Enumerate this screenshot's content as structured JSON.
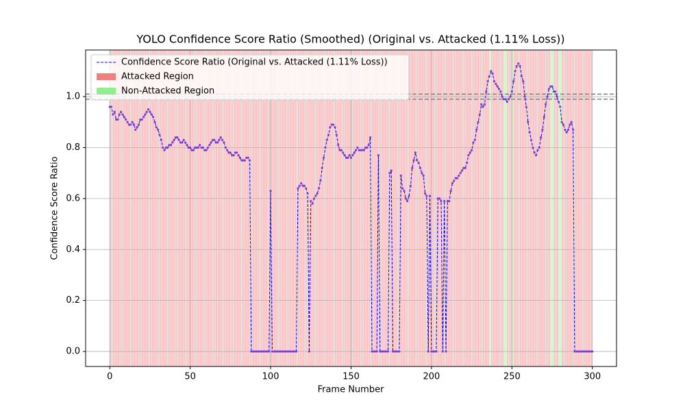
{
  "chart_data": {
    "type": "line",
    "title": "YOLO Confidence Score Ratio (Smoothed) (Original vs. Attacked (1.11% Loss))",
    "x_label": "Frame Number",
    "y_label": "Confidence Score Ratio",
    "x": [
      0,
      1,
      2,
      3,
      4,
      5,
      6,
      7,
      8,
      9,
      10,
      11,
      12,
      13,
      14,
      15,
      16,
      17,
      18,
      19,
      20,
      21,
      22,
      23,
      24,
      25,
      26,
      27,
      28,
      29,
      30,
      31,
      32,
      33,
      34,
      35,
      36,
      37,
      38,
      39,
      40,
      41,
      42,
      43,
      44,
      45,
      46,
      47,
      48,
      49,
      50,
      51,
      52,
      53,
      54,
      55,
      56,
      57,
      58,
      59,
      60,
      61,
      62,
      63,
      64,
      65,
      66,
      67,
      68,
      69,
      70,
      71,
      72,
      73,
      74,
      75,
      76,
      77,
      78,
      79,
      80,
      81,
      82,
      83,
      84,
      85,
      86,
      87,
      88,
      89,
      90,
      91,
      92,
      93,
      94,
      95,
      96,
      97,
      98,
      99,
      100,
      101,
      102,
      103,
      104,
      105,
      106,
      107,
      108,
      109,
      110,
      111,
      112,
      113,
      114,
      115,
      116,
      117,
      118,
      119,
      120,
      121,
      122,
      123,
      124,
      125,
      126,
      127,
      128,
      129,
      130,
      131,
      132,
      133,
      134,
      135,
      136,
      137,
      138,
      139,
      140,
      141,
      142,
      143,
      144,
      145,
      146,
      147,
      148,
      149,
      150,
      151,
      152,
      153,
      154,
      155,
      156,
      157,
      158,
      159,
      160,
      161,
      162,
      163,
      164,
      165,
      166,
      167,
      168,
      169,
      170,
      171,
      172,
      173,
      174,
      175,
      176,
      177,
      178,
      179,
      180,
      181,
      182,
      183,
      184,
      185,
      186,
      187,
      188,
      189,
      190,
      191,
      192,
      193,
      194,
      195,
      196,
      197,
      198,
      199,
      200,
      201,
      202,
      203,
      204,
      205,
      206,
      207,
      208,
      209,
      210,
      211,
      212,
      213,
      214,
      215,
      216,
      217,
      218,
      219,
      220,
      221,
      222,
      223,
      224,
      225,
      226,
      227,
      228,
      229,
      230,
      231,
      232,
      233,
      234,
      235,
      236,
      237,
      238,
      239,
      240,
      241,
      242,
      243,
      244,
      245,
      246,
      247,
      248,
      249,
      250,
      251,
      252,
      253,
      254,
      255,
      256,
      257,
      258,
      259,
      260,
      261,
      262,
      263,
      264,
      265,
      266,
      267,
      268,
      269,
      270,
      271,
      272,
      273,
      274,
      275,
      276,
      277,
      278,
      279,
      280,
      281,
      282,
      283,
      284,
      285,
      286,
      287,
      288,
      289,
      290,
      291,
      292,
      293,
      294,
      295,
      296,
      297,
      298,
      299,
      300
    ],
    "series": [
      {
        "name": "Confidence Score Ratio (Original vs. Attacked (1.11% Loss))",
        "color": "#0000ff",
        "marker_color": "#7b3fd6",
        "values": [
          0.96,
          0.96,
          0.93,
          0.94,
          0.91,
          0.91,
          0.93,
          0.94,
          0.93,
          0.92,
          0.91,
          0.9,
          0.89,
          0.89,
          0.9,
          0.89,
          0.87,
          0.88,
          0.89,
          0.91,
          0.91,
          0.92,
          0.93,
          0.94,
          0.95,
          0.94,
          0.93,
          0.92,
          0.9,
          0.88,
          0.87,
          0.85,
          0.83,
          0.8,
          0.79,
          0.8,
          0.8,
          0.81,
          0.81,
          0.82,
          0.83,
          0.84,
          0.84,
          0.83,
          0.82,
          0.82,
          0.83,
          0.82,
          0.81,
          0.8,
          0.8,
          0.79,
          0.79,
          0.8,
          0.8,
          0.8,
          0.81,
          0.8,
          0.8,
          0.79,
          0.79,
          0.8,
          0.81,
          0.82,
          0.83,
          0.83,
          0.82,
          0.82,
          0.83,
          0.84,
          0.83,
          0.82,
          0.8,
          0.79,
          0.78,
          0.78,
          0.77,
          0.77,
          0.78,
          0.78,
          0.77,
          0.76,
          0.75,
          0.75,
          0.75,
          0.76,
          0.76,
          0.75,
          0,
          0,
          0,
          0,
          0,
          0,
          0,
          0,
          0,
          0,
          0,
          0,
          0.63,
          0,
          0,
          0,
          0,
          0,
          0,
          0,
          0,
          0,
          0,
          0,
          0,
          0,
          0,
          0,
          0,
          0.64,
          0.65,
          0.66,
          0.65,
          0.65,
          0.64,
          0.62,
          0,
          0.59,
          0.58,
          0.6,
          0.61,
          0.62,
          0.64,
          0.67,
          0.72,
          0.76,
          0.8,
          0.83,
          0.85,
          0.88,
          0.89,
          0.89,
          0.88,
          0.85,
          0.81,
          0.79,
          0.79,
          0.78,
          0.77,
          0.76,
          0.76,
          0.77,
          0.76,
          0.77,
          0.78,
          0.79,
          0.8,
          0.79,
          0.79,
          0.79,
          0.79,
          0.8,
          0.8,
          0.81,
          0.84,
          0,
          0,
          0,
          0,
          0.77,
          0,
          0,
          0,
          0,
          0,
          0,
          0.7,
          0.71,
          0,
          0,
          0,
          0,
          0,
          0.69,
          0.64,
          0.63,
          0.6,
          0.59,
          0.61,
          0.65,
          0.72,
          0.75,
          0.78,
          0.75,
          0.74,
          0.72,
          0.7,
          0.69,
          0.62,
          0.61,
          0,
          0.61,
          0,
          0,
          0,
          0,
          0.6,
          0.6,
          0.59,
          0,
          0.59,
          0,
          0.59,
          0.59,
          0.63,
          0.66,
          0.67,
          0.68,
          0.68,
          0.69,
          0.7,
          0.71,
          0.72,
          0.72,
          0.74,
          0.77,
          0.78,
          0.79,
          0.82,
          0.83,
          0.87,
          0.9,
          0.93,
          0.97,
          0.96,
          0.97,
          1.02,
          1.06,
          1.08,
          1.1,
          1.09,
          1.06,
          1.05,
          1.04,
          1.03,
          1.02,
          1.0,
          0.99,
          0.99,
          0.98,
          0.99,
          1.0,
          1.02,
          1.06,
          1.1,
          1.12,
          1.13,
          1.12,
          1.08,
          1.06,
          1.0,
          0.96,
          0.9,
          0.86,
          0.83,
          0.8,
          0.78,
          0.77,
          0.79,
          0.8,
          0.84,
          0.87,
          0.92,
          0.97,
          1.0,
          1.03,
          1.04,
          1.04,
          1.02,
          1.02,
          1.0,
          0.98,
          0.96,
          0.9,
          0.89,
          0.87,
          0.86,
          0.87,
          0.89,
          0.9,
          0.87,
          0,
          0,
          0,
          0,
          0,
          0,
          0,
          0,
          0,
          0,
          0,
          0
        ]
      }
    ],
    "regions": [
      {
        "name": "Attacked Region",
        "color": "#f08080"
      },
      {
        "name": "Non-Attacked Region",
        "color": "#90ee90",
        "frames": [
          236,
          245,
          246,
          250,
          274,
          275,
          279,
          280
        ]
      }
    ],
    "reference_lines": [
      0.99,
      1.01
    ],
    "xlim": [
      -15,
      315
    ],
    "ylim": [
      -0.059,
      1.183
    ],
    "xticks": [
      0,
      50,
      100,
      150,
      200,
      250,
      300
    ],
    "yticks": [
      {
        "value": 0,
        "label": "0.0"
      },
      0.2,
      0.4,
      0.6,
      0.8,
      {
        "value": 1,
        "label": "1.0"
      }
    ],
    "grid": true,
    "legend": "upper left"
  }
}
